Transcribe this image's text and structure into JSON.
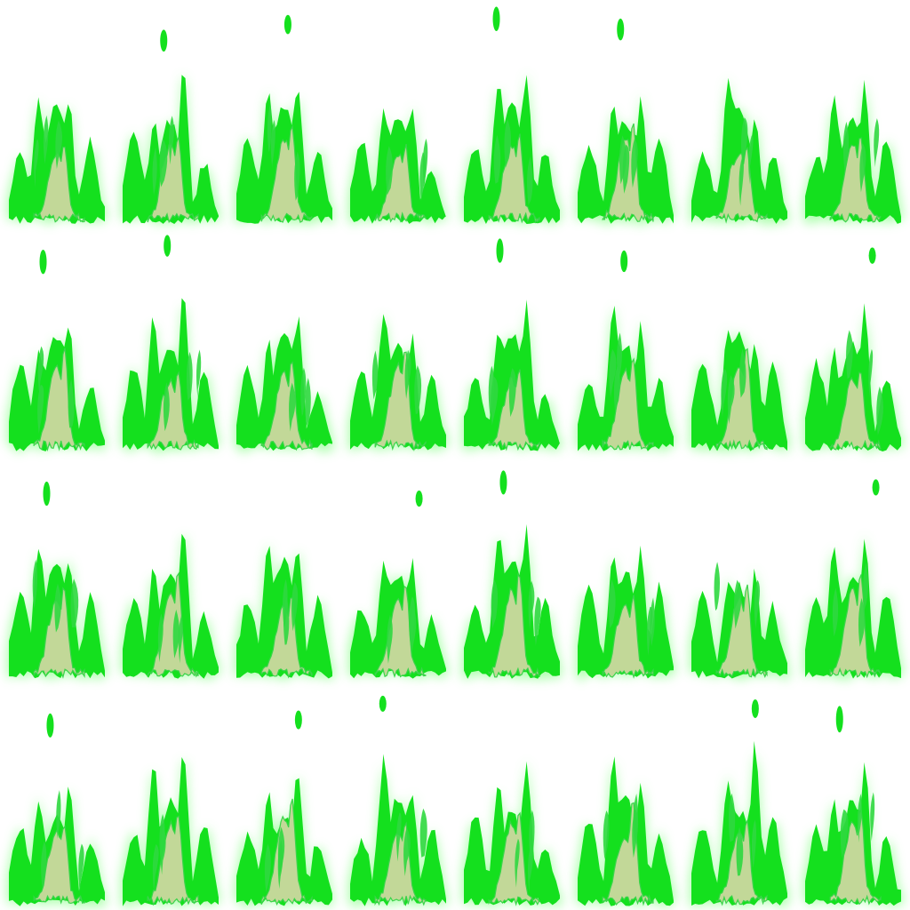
{
  "sprite_sheet": {
    "kind": "flame-animation-frames",
    "rows": 4,
    "columns": 8,
    "frame_count": 32,
    "colors": {
      "background": "#ffffff",
      "glow": "#9cff9c",
      "outer_flame": "#14e01e",
      "inner_flame": "#c2d898",
      "inner_outline": "#3ad44a",
      "streak": "#2fd83f"
    }
  }
}
